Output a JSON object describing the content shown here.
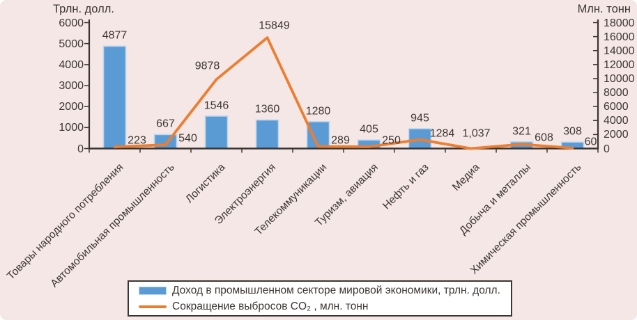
{
  "colors": {
    "background": "#f5e7e5",
    "bar": "#5b9bd5",
    "bar_edge": "#bdd7ee",
    "line": "#ed7d31",
    "axis": "#3a3532",
    "text": "#3c3633",
    "legend_bg": "#ffffff"
  },
  "axes": {
    "left": {
      "title": "Трлн. долл.",
      "max": 6000,
      "ticks": [
        0,
        1000,
        2000,
        3000,
        4000,
        5000,
        6000
      ]
    },
    "right": {
      "title": "Млн. тонн",
      "max": 18000,
      "ticks": [
        0,
        2000,
        4000,
        6000,
        8000,
        10000,
        12000,
        14000,
        16000,
        18000
      ]
    }
  },
  "chart_data": {
    "type": "combo-bar-line",
    "categories": [
      "Товары народного потребления",
      "Автомобильная промышленность",
      "Логистика",
      "Электроэнергия",
      "Телекоммуникации",
      "Туризм, авиация",
      "Нефть и газ",
      "Медиа",
      "Добыча и металлы",
      "Химическая промышленность"
    ],
    "series": [
      {
        "name": "Доход в промышленном секторе мировой экономики, трлн. долл.",
        "type": "bar",
        "axis": "left",
        "values": [
          4877,
          667,
          1546,
          1360,
          1280,
          405,
          945,
          null,
          321,
          308
        ],
        "labels": [
          "4877",
          "667",
          "1546",
          "1360",
          "1280",
          "405",
          "945",
          null,
          "321",
          "308"
        ]
      },
      {
        "name": "Сокращение выбросов CO₂, млн. тонн",
        "type": "line",
        "axis": "right",
        "values": [
          223,
          540,
          9878,
          15849,
          289,
          250,
          1284,
          1.037,
          608,
          60
        ],
        "labels": [
          "223",
          "540",
          "9878",
          "15849",
          "289",
          "250",
          "1284",
          "1,037",
          "608",
          "60"
        ]
      }
    ],
    "ylim_left": [
      0,
      6000
    ],
    "ylim_right": [
      0,
      18000
    ],
    "grid": false,
    "legend_position": "bottom"
  },
  "legend": {
    "items": [
      {
        "swatch": "bar",
        "label": "Доход в промышленном секторе мировой экономики, трлн. долл."
      },
      {
        "swatch": "line",
        "label": "Сокращение выбросов CO₂ , млн. тонн"
      }
    ]
  }
}
